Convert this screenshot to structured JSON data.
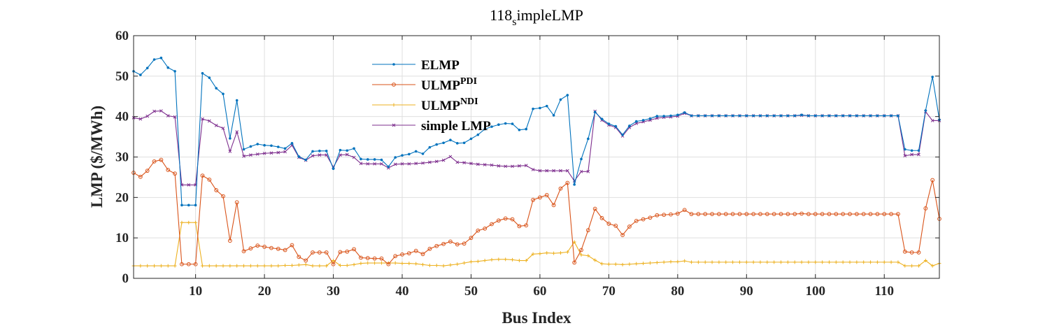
{
  "chart_data": {
    "type": "line",
    "title": "118",
    "title_sub": "s",
    "title_rest": "impleLMP",
    "xlabel": "Bus Index",
    "ylabel": "LMP ($/MWh)",
    "xlim": [
      1,
      118
    ],
    "ylim": [
      0,
      60
    ],
    "xticks": [
      10,
      20,
      30,
      40,
      50,
      60,
      70,
      80,
      90,
      100,
      110
    ],
    "yticks": [
      0,
      10,
      20,
      30,
      40,
      50,
      60
    ],
    "grid": true,
    "legend_position": "upper-center",
    "series": [
      {
        "name": "ELMP",
        "name_sup": "",
        "color": "#0072BD",
        "marker": "dot",
        "values": [
          51.2,
          50.3,
          52,
          54.1,
          54.5,
          52.1,
          51.2,
          18.1,
          18.1,
          18.1,
          50.7,
          49.6,
          47,
          45.6,
          34.6,
          44,
          31.9,
          32.6,
          33.2,
          32.9,
          32.8,
          32.5,
          32.1,
          33.4,
          30.1,
          29.3,
          31.4,
          31.5,
          31.5,
          27.1,
          31.7,
          31.6,
          32.1,
          29.5,
          29.4,
          29.4,
          29.3,
          27.6,
          29.9,
          30.4,
          30.7,
          31.4,
          30.8,
          32.4,
          33.1,
          33.5,
          34.2,
          33.4,
          33.5,
          34.5,
          35.5,
          36.9,
          37.5,
          38,
          38.3,
          38.2,
          36.7,
          36.9,
          41.9,
          42.1,
          42.6,
          40.3,
          44.2,
          45.3,
          23.2,
          29.5,
          34.5,
          41.1,
          39.4,
          38.2,
          37.6,
          35.5,
          37.7,
          38.8,
          39.1,
          39.5,
          40.1,
          40.1,
          40.2,
          40.4,
          41,
          40.2,
          40.2,
          40.2,
          40.2,
          40.2,
          40.2,
          40.2,
          40.2,
          40.2,
          40.2,
          40.2,
          40.2,
          40.2,
          40.2,
          40.2,
          40.2,
          40.4,
          40.2,
          40.2,
          40.2,
          40.2,
          40.2,
          40.2,
          40.2,
          40.2,
          40.2,
          40.2,
          40.2,
          40.2,
          40.2,
          40.2,
          31.9,
          31.6,
          31.6,
          41.5,
          49.8,
          39.2
        ]
      },
      {
        "name": "ULMP",
        "name_sup": "PDI",
        "color": "#D95319",
        "marker": "circle",
        "values": [
          26.1,
          25.1,
          26.6,
          28.9,
          29.3,
          26.8,
          25.9,
          3.5,
          3.5,
          3.5,
          25.4,
          24.4,
          21.8,
          20.3,
          9.3,
          18.8,
          6.7,
          7.4,
          8.1,
          7.8,
          7.5,
          7.3,
          7,
          8.2,
          5.3,
          4.4,
          6.4,
          6.4,
          6.4,
          3.5,
          6.5,
          6.6,
          7.2,
          5.1,
          5,
          4.9,
          4.9,
          3.5,
          5.5,
          5.9,
          6.2,
          6.8,
          6,
          7.3,
          8,
          8.5,
          9.1,
          8.4,
          8.6,
          10,
          11.8,
          12.3,
          13.4,
          14.3,
          14.8,
          14.6,
          12.9,
          13.1,
          19.4,
          20,
          20.6,
          18.1,
          22.2,
          23.6,
          3.9,
          7,
          11.9,
          17.2,
          14.9,
          13.5,
          13,
          10.7,
          12.8,
          14.2,
          14.6,
          15,
          15.6,
          15.7,
          15.8,
          16,
          16.9,
          15.9,
          15.9,
          15.9,
          15.9,
          15.9,
          15.9,
          15.9,
          15.9,
          15.9,
          15.9,
          15.9,
          15.9,
          15.9,
          15.9,
          15.9,
          15.9,
          16,
          15.9,
          15.9,
          15.9,
          15.9,
          15.9,
          15.9,
          15.9,
          15.9,
          15.9,
          15.9,
          15.9,
          15.9,
          15.9,
          15.9,
          6.6,
          6.4,
          6.4,
          17.3,
          24.3,
          14.7
        ]
      },
      {
        "name": "ULMP",
        "name_sup": "NDI",
        "color": "#EDB120",
        "marker": "plus",
        "values": [
          3.1,
          3.1,
          3.1,
          3.1,
          3.1,
          3.1,
          3.1,
          13.8,
          13.8,
          13.8,
          3.1,
          3.1,
          3.1,
          3.1,
          3.1,
          3.1,
          3.1,
          3.1,
          3.1,
          3.1,
          3.1,
          3.1,
          3.2,
          3.2,
          3.3,
          3.4,
          3.1,
          3.1,
          3.1,
          4.4,
          3.2,
          3.2,
          3.4,
          3.7,
          3.8,
          3.8,
          3.8,
          3.8,
          3.8,
          3.7,
          3.7,
          3.6,
          3.4,
          3.2,
          3.2,
          3.1,
          3.3,
          3.5,
          3.8,
          4.1,
          4.2,
          4.4,
          4.6,
          4.7,
          4.7,
          4.6,
          4.4,
          4.4,
          6,
          6.1,
          6.3,
          6.2,
          6.3,
          6.5,
          9,
          5.8,
          5.6,
          4.5,
          3.6,
          3.5,
          3.5,
          3.4,
          3.5,
          3.6,
          3.7,
          3.8,
          3.9,
          4,
          4.1,
          4.1,
          4.3,
          4,
          4,
          4,
          4,
          4,
          4,
          4,
          4,
          4,
          4,
          4,
          4,
          4,
          4,
          4,
          4,
          4,
          4,
          4,
          4,
          4,
          4,
          4,
          4,
          4,
          4,
          4,
          4,
          4,
          4,
          4,
          3.1,
          3.1,
          3.1,
          4.4,
          3.1,
          3.7
        ]
      },
      {
        "name": "simple LMP",
        "name_sup": "",
        "color": "#7E2F8E",
        "marker": "cross",
        "values": [
          39.7,
          39.4,
          40.1,
          41.3,
          41.4,
          40.2,
          39.9,
          23.1,
          23.1,
          23.1,
          39.4,
          38.9,
          37.8,
          37.1,
          31.4,
          36.2,
          30.2,
          30.5,
          30.7,
          30.9,
          31,
          31.1,
          31.3,
          32.9,
          29.9,
          29.2,
          30.3,
          30.5,
          30.5,
          27.5,
          30.5,
          30.6,
          29.9,
          28.4,
          28.3,
          28.3,
          28.3,
          27.3,
          28.2,
          28.3,
          28.3,
          28.4,
          28.5,
          28.7,
          28.9,
          29.2,
          30.1,
          28.7,
          28.6,
          28.4,
          28.2,
          28.1,
          28,
          27.8,
          27.7,
          27.7,
          27.8,
          27.9,
          26.9,
          26.6,
          26.6,
          26.6,
          26.6,
          26.6,
          24.1,
          26.4,
          26.4,
          41.3,
          39.1,
          37.9,
          37.3,
          35.2,
          37.3,
          38.3,
          38.7,
          39.1,
          39.6,
          39.8,
          39.9,
          40.1,
          40.8,
          40.2,
          40.2,
          40.2,
          40.2,
          40.2,
          40.2,
          40.2,
          40.2,
          40.2,
          40.2,
          40.2,
          40.2,
          40.2,
          40.2,
          40.2,
          40.2,
          40.3,
          40.2,
          40.2,
          40.2,
          40.2,
          40.2,
          40.2,
          40.2,
          40.2,
          40.2,
          40.2,
          40.2,
          40.2,
          40.2,
          40.2,
          30.3,
          30.6,
          30.6,
          41.2,
          39,
          39
        ]
      }
    ]
  }
}
